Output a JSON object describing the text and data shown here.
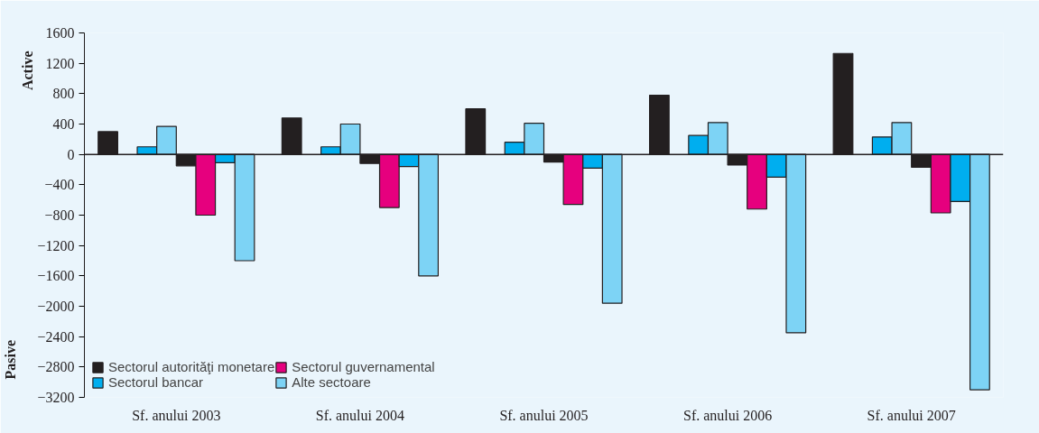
{
  "chart_data": {
    "type": "bar",
    "categories": [
      "Sf. anului 2003",
      "Sf. anului 2004",
      "Sf. anului 2005",
      "Sf. anului 2006",
      "Sf. anului 2007"
    ],
    "series": [
      {
        "name": "Sectorul autorităţi monetare",
        "color": "#231f20",
        "values": [
          300,
          480,
          600,
          780,
          1330
        ]
      },
      {
        "values": [
          null,
          null,
          null,
          null,
          null
        ]
      },
      {
        "name": "Sectorul bancar",
        "color": "#00aeef",
        "values": [
          100,
          100,
          160,
          250,
          230
        ]
      },
      {
        "color": "#7dd3f5",
        "values": [
          370,
          400,
          410,
          420,
          420
        ]
      },
      {
        "color": "#231f20",
        "values": [
          -150,
          -120,
          -100,
          -140,
          -170
        ]
      },
      {
        "name": "Sectorul guvernamental",
        "color": "#e6007e",
        "values": [
          -800,
          -700,
          -660,
          -720,
          -770
        ]
      },
      {
        "color": "#00aeef",
        "values": [
          -110,
          -160,
          -180,
          -300,
          -620
        ]
      },
      {
        "name": "Alte sectoare",
        "color": "#7dd3f5",
        "values": [
          -1400,
          -1600,
          -1960,
          -2350,
          -3100
        ]
      }
    ],
    "ylim": [
      -3200,
      1600
    ],
    "yticks": [
      -3200,
      -2800,
      -2400,
      -2000,
      -1600,
      -1200,
      -800,
      -400,
      0,
      400,
      800,
      1200,
      1600
    ],
    "annotations": [
      "Active",
      "Pasive"
    ],
    "legend": "bottom left"
  }
}
